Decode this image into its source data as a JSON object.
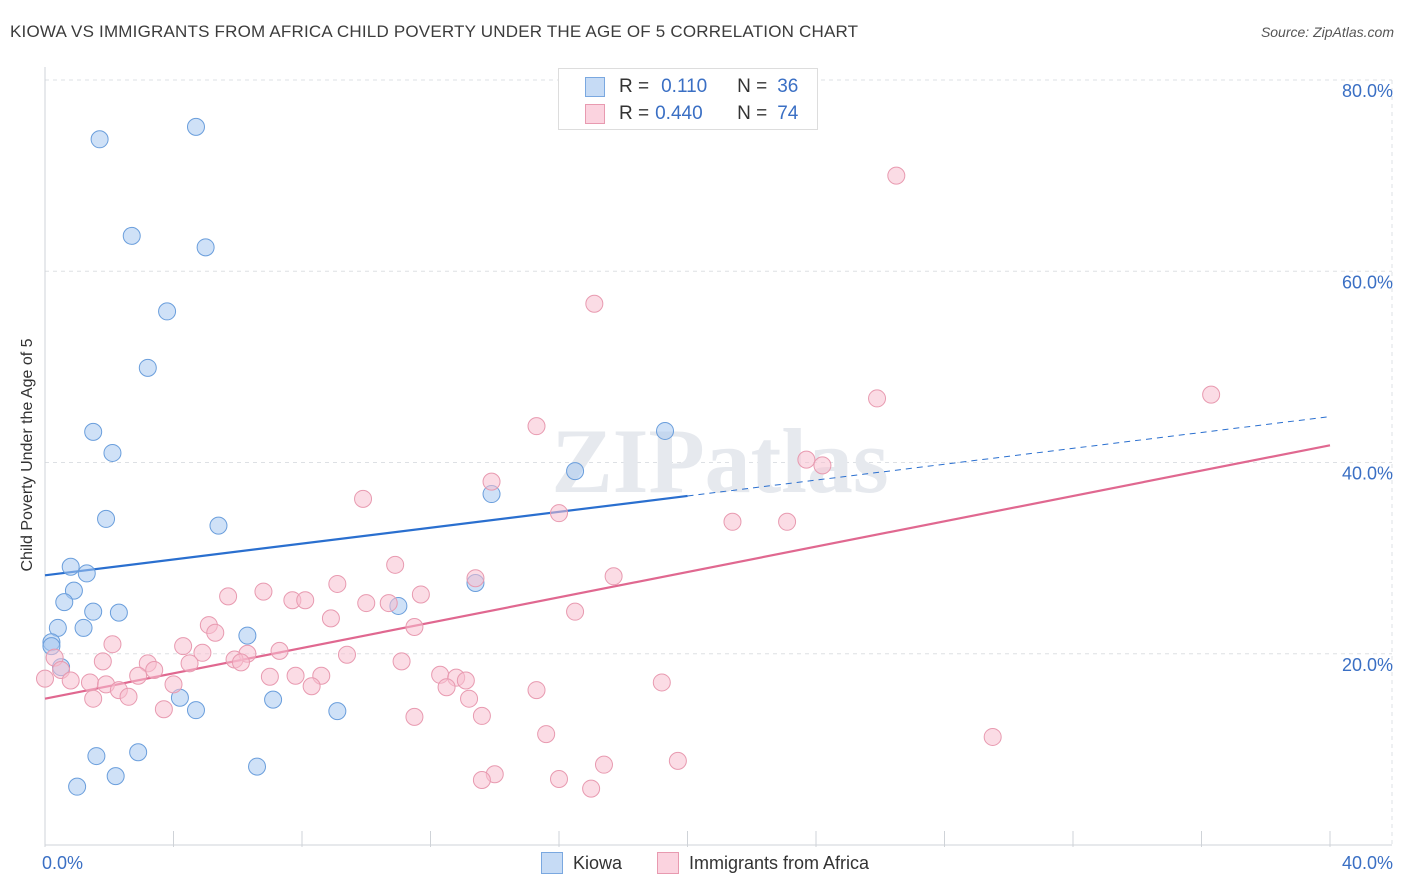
{
  "title": "KIOWA VS IMMIGRANTS FROM AFRICA CHILD POVERTY UNDER THE AGE OF 5 CORRELATION CHART",
  "source": "Source: ZipAtlas.com",
  "watermark": "ZIPatlas",
  "legend_stats": [
    {
      "r_label": "R =",
      "r_value": "0.110",
      "n_label": "N =",
      "n_value": "36",
      "color": "#a8c8f0",
      "border": "#7aa8e0"
    },
    {
      "r_label": "R =",
      "r_value": "0.440",
      "n_label": "N =",
      "n_value": "74",
      "color": "#f8c0d0",
      "border": "#e89ab0"
    }
  ],
  "chart_data": {
    "type": "scatter",
    "title": "KIOWA VS IMMIGRANTS FROM AFRICA CHILD POVERTY UNDER THE AGE OF 5 CORRELATION CHART",
    "xlabel": "",
    "ylabel": "Child Poverty Under the Age of 5",
    "xlim": [
      0,
      40
    ],
    "ylim": [
      0,
      80
    ],
    "x_tick_labels": [
      "0.0%",
      "40.0%"
    ],
    "y_ticks": [
      20,
      40,
      60,
      80
    ],
    "y_tick_labels": [
      "20.0%",
      "40.0%",
      "60.0%",
      "80.0%"
    ],
    "grid": true,
    "legend_position": "bottom",
    "series": [
      {
        "name": "Kiowa",
        "color": "#a8c8f0",
        "stroke": "#6a9edc",
        "trend_color": "#2a6fcf",
        "trend": {
          "x0": 0,
          "y0": 28.2,
          "x1": 20,
          "y1": 36.5,
          "x_dashed_end": 40,
          "y_dashed_end": 44.8
        },
        "points": [
          [
            1.7,
            73.8
          ],
          [
            4.7,
            75.1
          ],
          [
            2.7,
            63.7
          ],
          [
            5.0,
            62.5
          ],
          [
            3.8,
            55.8
          ],
          [
            3.2,
            49.9
          ],
          [
            1.5,
            43.2
          ],
          [
            2.1,
            41.0
          ],
          [
            1.9,
            34.1
          ],
          [
            5.4,
            33.4
          ],
          [
            13.9,
            36.7
          ],
          [
            16.5,
            39.1
          ],
          [
            19.3,
            43.3
          ],
          [
            13.4,
            27.4
          ],
          [
            11.0,
            25.0
          ],
          [
            0.8,
            29.1
          ],
          [
            1.3,
            28.4
          ],
          [
            0.9,
            26.6
          ],
          [
            0.6,
            25.4
          ],
          [
            1.5,
            24.4
          ],
          [
            2.3,
            24.3
          ],
          [
            0.4,
            22.7
          ],
          [
            1.2,
            22.7
          ],
          [
            6.3,
            21.9
          ],
          [
            0.2,
            21.2
          ],
          [
            0.2,
            20.8
          ],
          [
            0.5,
            18.6
          ],
          [
            4.2,
            15.4
          ],
          [
            4.7,
            14.1
          ],
          [
            7.1,
            15.2
          ],
          [
            9.1,
            14.0
          ],
          [
            1.6,
            9.3
          ],
          [
            2.9,
            9.7
          ],
          [
            1.0,
            6.1
          ],
          [
            2.2,
            7.2
          ],
          [
            6.6,
            8.2
          ]
        ]
      },
      {
        "name": "Immigrants from Africa",
        "color": "#f8c0d0",
        "stroke": "#e89ab0",
        "trend_color": "#e06890",
        "trend": {
          "x0": 0,
          "y0": 15.3,
          "x1": 40,
          "y1": 41.8
        },
        "points": [
          [
            26.5,
            70.0
          ],
          [
            17.1,
            56.6
          ],
          [
            25.9,
            46.7
          ],
          [
            36.3,
            47.1
          ],
          [
            15.3,
            43.8
          ],
          [
            23.7,
            40.3
          ],
          [
            24.2,
            39.7
          ],
          [
            13.9,
            38.0
          ],
          [
            9.9,
            36.2
          ],
          [
            16.0,
            34.7
          ],
          [
            21.4,
            33.8
          ],
          [
            23.1,
            33.8
          ],
          [
            10.9,
            29.3
          ],
          [
            17.7,
            28.1
          ],
          [
            13.4,
            27.9
          ],
          [
            9.1,
            27.3
          ],
          [
            6.8,
            26.5
          ],
          [
            5.7,
            26.0
          ],
          [
            11.7,
            26.2
          ],
          [
            7.7,
            25.6
          ],
          [
            8.1,
            25.6
          ],
          [
            10.0,
            25.3
          ],
          [
            10.7,
            25.3
          ],
          [
            16.5,
            24.4
          ],
          [
            8.9,
            23.7
          ],
          [
            5.1,
            23.0
          ],
          [
            11.5,
            22.8
          ],
          [
            5.3,
            22.2
          ],
          [
            2.1,
            21.0
          ],
          [
            4.3,
            20.8
          ],
          [
            7.3,
            20.3
          ],
          [
            0.3,
            19.6
          ],
          [
            4.9,
            20.1
          ],
          [
            6.3,
            20.0
          ],
          [
            9.4,
            19.9
          ],
          [
            5.9,
            19.4
          ],
          [
            6.1,
            19.1
          ],
          [
            1.8,
            19.2
          ],
          [
            3.2,
            19.0
          ],
          [
            4.5,
            19.0
          ],
          [
            11.1,
            19.2
          ],
          [
            3.4,
            18.3
          ],
          [
            0.5,
            18.3
          ],
          [
            0.8,
            17.2
          ],
          [
            1.4,
            17.0
          ],
          [
            1.9,
            16.8
          ],
          [
            7.0,
            17.6
          ],
          [
            8.6,
            17.7
          ],
          [
            2.9,
            17.7
          ],
          [
            7.8,
            17.7
          ],
          [
            12.3,
            17.8
          ],
          [
            12.8,
            17.5
          ],
          [
            13.1,
            17.2
          ],
          [
            19.2,
            17.0
          ],
          [
            4.0,
            16.8
          ],
          [
            8.3,
            16.6
          ],
          [
            12.5,
            16.5
          ],
          [
            2.3,
            16.2
          ],
          [
            15.3,
            16.2
          ],
          [
            2.6,
            15.5
          ],
          [
            1.5,
            15.3
          ],
          [
            13.2,
            15.3
          ],
          [
            3.7,
            14.2
          ],
          [
            11.5,
            13.4
          ],
          [
            13.6,
            13.5
          ],
          [
            15.6,
            11.6
          ],
          [
            29.5,
            11.3
          ],
          [
            19.7,
            8.8
          ],
          [
            17.4,
            8.4
          ],
          [
            14.0,
            7.4
          ],
          [
            13.6,
            6.8
          ],
          [
            16.0,
            6.9
          ],
          [
            17.0,
            5.9
          ],
          [
            0.0,
            17.4
          ]
        ]
      }
    ]
  }
}
